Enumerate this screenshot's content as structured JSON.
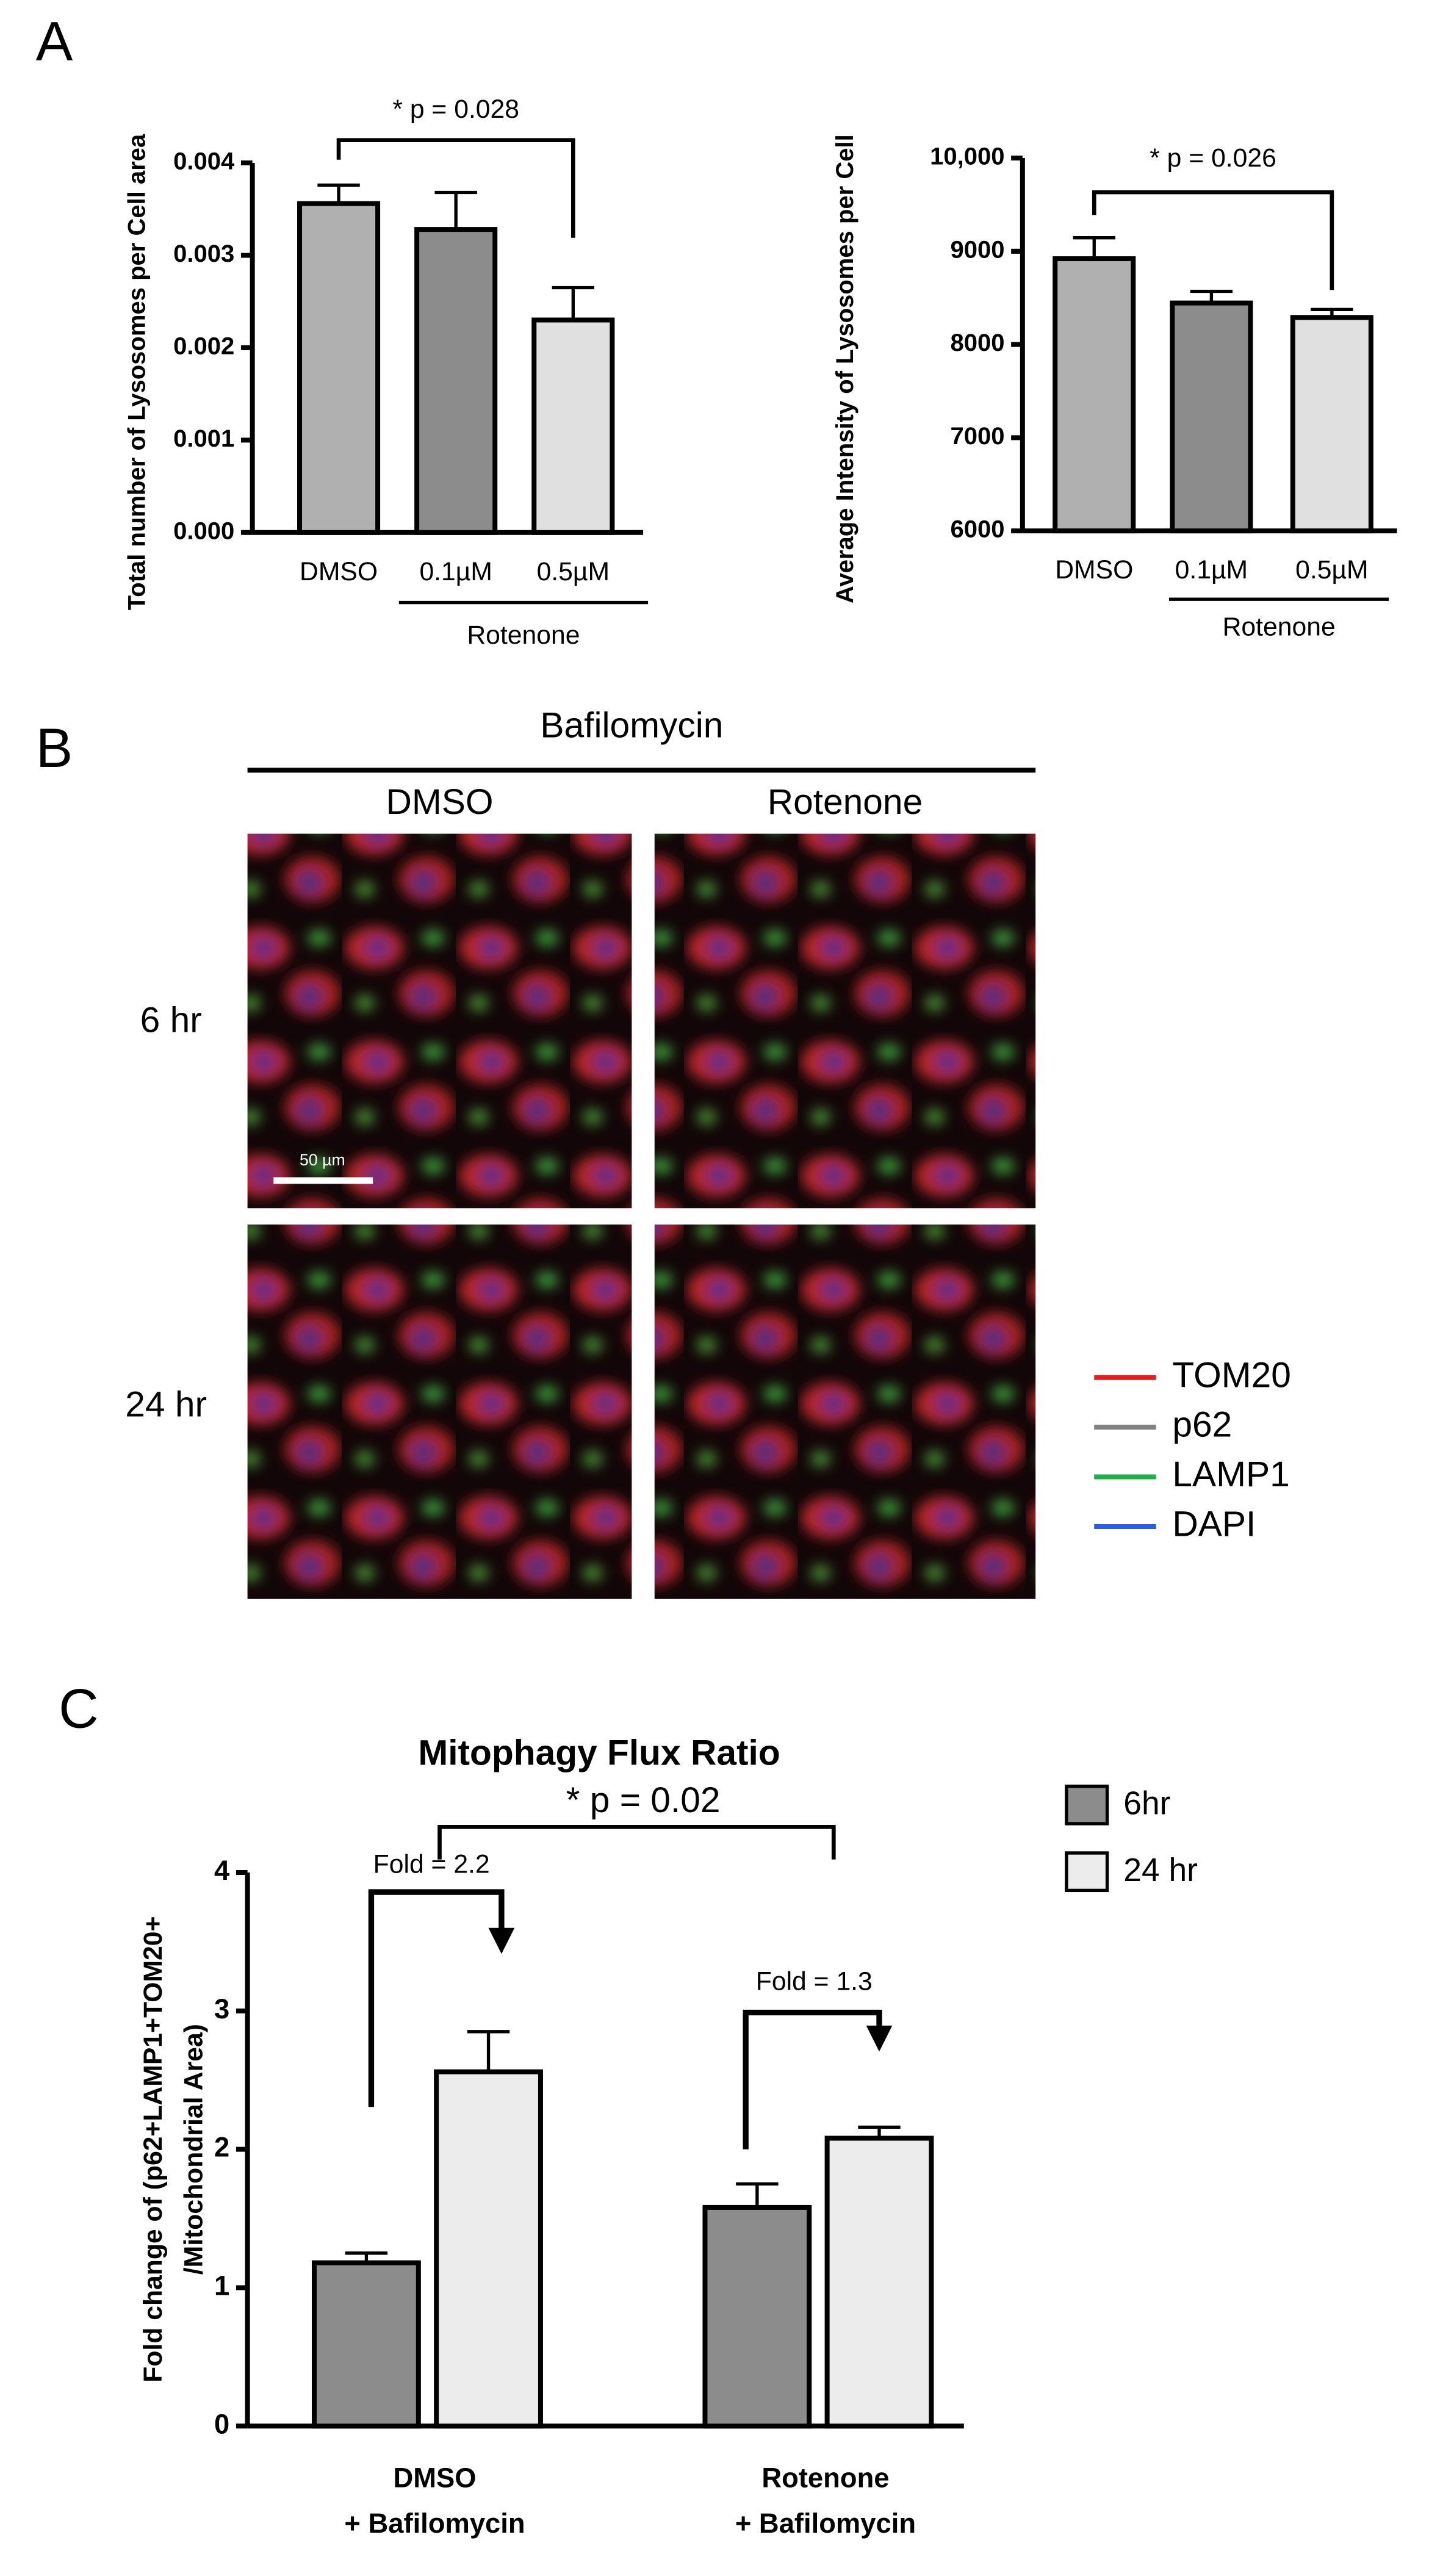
{
  "panel_labels": [
    "A",
    "B",
    "C"
  ],
  "chart_data": [
    {
      "type": "bar",
      "ylabel": "Total number of Lysosomes per Cell area",
      "categories": [
        "DMSO",
        "0.1µM",
        "0.5µM"
      ],
      "values": [
        0.00356,
        0.00328,
        0.0023
      ],
      "errors": [
        0.0002,
        0.0004,
        0.00035
      ],
      "colors": [
        "#b0b0b0",
        "#8c8c8c",
        "#e0e0e0"
      ],
      "group_label": "Rotenone",
      "annotation": "* p = 0.028",
      "ylim": [
        0,
        0.004
      ],
      "yticks": [
        {
          "value": 0,
          "label": "0.000"
        },
        {
          "value": 0.001,
          "label": "0.001"
        },
        {
          "value": 0.002,
          "label": "0.002"
        },
        {
          "value": 0.003,
          "label": "0.003"
        },
        {
          "value": 0.004,
          "label": "0.004"
        }
      ]
    },
    {
      "type": "bar",
      "ylabel": "Average Intensity of Lysosomes per Cell",
      "categories": [
        "DMSO",
        "0.1µM",
        "0.5µM"
      ],
      "values": [
        8920,
        8445,
        8290
      ],
      "errors": [
        225,
        125,
        85
      ],
      "colors": [
        "#b0b0b0",
        "#8c8c8c",
        "#e0e0e0"
      ],
      "group_label": "Rotenone",
      "annotation": "* p = 0.026",
      "ylim": [
        6000,
        10000
      ],
      "yticks": [
        6000,
        7000,
        8000,
        9000,
        {
          "value": 10000,
          "label": "10,000"
        }
      ]
    },
    {
      "type": "grouped_bar",
      "title": "Mitophagy Flux Ratio",
      "ylabel": [
        "Fold change of (p62+LAMP1+TOM20+",
        "/Mitochondrial Area)"
      ],
      "categories": [
        [
          "DMSO",
          "+ Bafilomycin"
        ],
        [
          "Rotenone",
          "+ Bafilomycin"
        ]
      ],
      "series": [
        {
          "name": "6hr",
          "color": "#8c8c8c",
          "values": [
            1.18,
            1.58
          ],
          "errors": [
            0.07,
            0.17
          ]
        },
        {
          "name": "24 hr",
          "color": "#ececec",
          "values": [
            2.56,
            2.08
          ],
          "errors": [
            0.29,
            0.08
          ]
        }
      ],
      "annotation": "* p = 0.02",
      "fold_labels": [
        "Fold = 2.2",
        "Fold = 1.3"
      ],
      "ylim": [
        0,
        4
      ],
      "yticks": [
        0,
        1,
        2,
        3,
        4
      ]
    }
  ],
  "panel_b": {
    "header": "Bafilomycin",
    "columns": [
      "DMSO",
      "Rotenone"
    ],
    "rows": [
      "6 hr",
      "24 hr"
    ],
    "scale_bar": "50 µm",
    "legend": [
      {
        "name": "TOM20",
        "color": "#e0201e"
      },
      {
        "name": "p62",
        "color": "#808080"
      },
      {
        "name": "LAMP1",
        "color": "#1fb04a"
      },
      {
        "name": "DAPI",
        "color": "#2a5ee8"
      }
    ]
  }
}
